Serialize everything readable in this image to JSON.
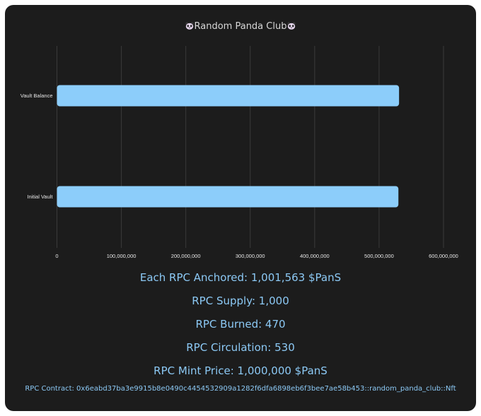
{
  "page": {
    "title": "Random Panda Club",
    "title_icon": "panda-face-icon"
  },
  "chart_data": {
    "type": "bar",
    "orientation": "horizontal",
    "categories": [
      "Vault Balance",
      "Initial Vault"
    ],
    "values": [
      531000000,
      530000000
    ],
    "xlim": [
      0,
      600000000
    ],
    "xticks": [
      "0",
      "100,000,000",
      "200,000,000",
      "300,000,000",
      "400,000,000",
      "500,000,000",
      "600,000,000"
    ],
    "xtick_values": [
      0,
      100000000,
      200000000,
      300000000,
      400000000,
      500000000,
      600000000
    ],
    "grid": true,
    "bar_color": "#8ccdfa",
    "grid_color": "#3a3a3a"
  },
  "stats": {
    "anchored": "Each RPC Anchored: 1,001,563 $PanS",
    "supply": "RPC Supply: 1,000",
    "burned": "RPC Burned: 470",
    "circulation": "RPC Circulation: 530",
    "mint_price": "RPC Mint Price: 1,000,000 $PanS",
    "contract": "RPC Contract: 0x6eabd37ba3e9915b8e0490c4454532909a1282f6dfa6898eb6f3bee7ae58b453::random_panda_club::Nft"
  },
  "colors": {
    "background": "#1c1c1c",
    "accent_text": "#8cc9f5",
    "title_text": "#d8d8d8"
  }
}
